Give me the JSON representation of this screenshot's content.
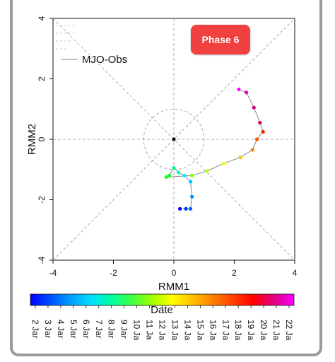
{
  "phase_badge": "Phase 6",
  "legend": {
    "label": "MJO-Obs"
  },
  "colorbar": {
    "title": "Date",
    "colors": [
      "#0000ff",
      "#0050ff",
      "#00a0ff",
      "#00e0ff",
      "#00ffa0",
      "#40ff40",
      "#a0ff00",
      "#ffff00",
      "#ffc000",
      "#ff8000",
      "#ff4000",
      "#ff0000",
      "#e00080",
      "#ff00ff"
    ],
    "dates": [
      "2 Jar",
      "3 Jar",
      "4 Jar",
      "5 Jar",
      "6 Jar",
      "7 Jar",
      "8 Jar",
      "9 Jar",
      "10 Ja",
      "11 Ja",
      "12 Ja",
      "13 Ja",
      "14 Ja",
      "15 Ja",
      "16 Ja",
      "17 Ja",
      "18 Ja",
      "19 Ja",
      "20 Ja",
      "21 Ja",
      "22 Ja"
    ]
  },
  "chart_data": {
    "type": "scatter",
    "xlabel": "RMM1",
    "ylabel": "RMM2",
    "xlim": [
      -4,
      4
    ],
    "ylim": [
      -4,
      4
    ],
    "xticks": [
      "-4",
      "-2",
      "0",
      "2",
      "4"
    ],
    "yticks": [
      "4",
      "2",
      "0",
      "-2",
      "-4"
    ],
    "grid": "dashed",
    "legend_position": "top-left",
    "series": [
      {
        "name": "MJO-Obs",
        "points": [
          {
            "x": 0.2,
            "y": -2.3,
            "color": "#0000ff"
          },
          {
            "x": 0.4,
            "y": -2.3,
            "color": "#0030ff"
          },
          {
            "x": 0.55,
            "y": -2.3,
            "color": "#0060ff"
          },
          {
            "x": 0.6,
            "y": -1.9,
            "color": "#0090ff"
          },
          {
            "x": 0.55,
            "y": -1.4,
            "color": "#00c0ff"
          },
          {
            "x": 0.35,
            "y": -1.2,
            "color": "#00f0ff"
          },
          {
            "x": 0.15,
            "y": -1.1,
            "color": "#00ffc0"
          },
          {
            "x": 0.0,
            "y": -0.95,
            "color": "#00ff80"
          },
          {
            "x": -0.15,
            "y": -1.2,
            "color": "#00ff40"
          },
          {
            "x": -0.25,
            "y": -1.25,
            "color": "#20ff00"
          },
          {
            "x": 0.6,
            "y": -1.2,
            "color": "#80ff00"
          },
          {
            "x": 1.1,
            "y": -1.05,
            "color": "#c0ff00"
          },
          {
            "x": 1.65,
            "y": -0.8,
            "color": "#ffff00"
          },
          {
            "x": 2.2,
            "y": -0.6,
            "color": "#ffc000"
          },
          {
            "x": 2.6,
            "y": -0.35,
            "color": "#ff8000"
          },
          {
            "x": 2.75,
            "y": 0.0,
            "color": "#ff5000"
          },
          {
            "x": 2.95,
            "y": 0.25,
            "color": "#ff2000"
          },
          {
            "x": 2.85,
            "y": 0.55,
            "color": "#e00040"
          },
          {
            "x": 2.65,
            "y": 1.05,
            "color": "#d00080"
          },
          {
            "x": 2.4,
            "y": 1.55,
            "color": "#e000c0"
          },
          {
            "x": 2.15,
            "y": 1.65,
            "color": "#ff00ff"
          }
        ]
      }
    ]
  }
}
